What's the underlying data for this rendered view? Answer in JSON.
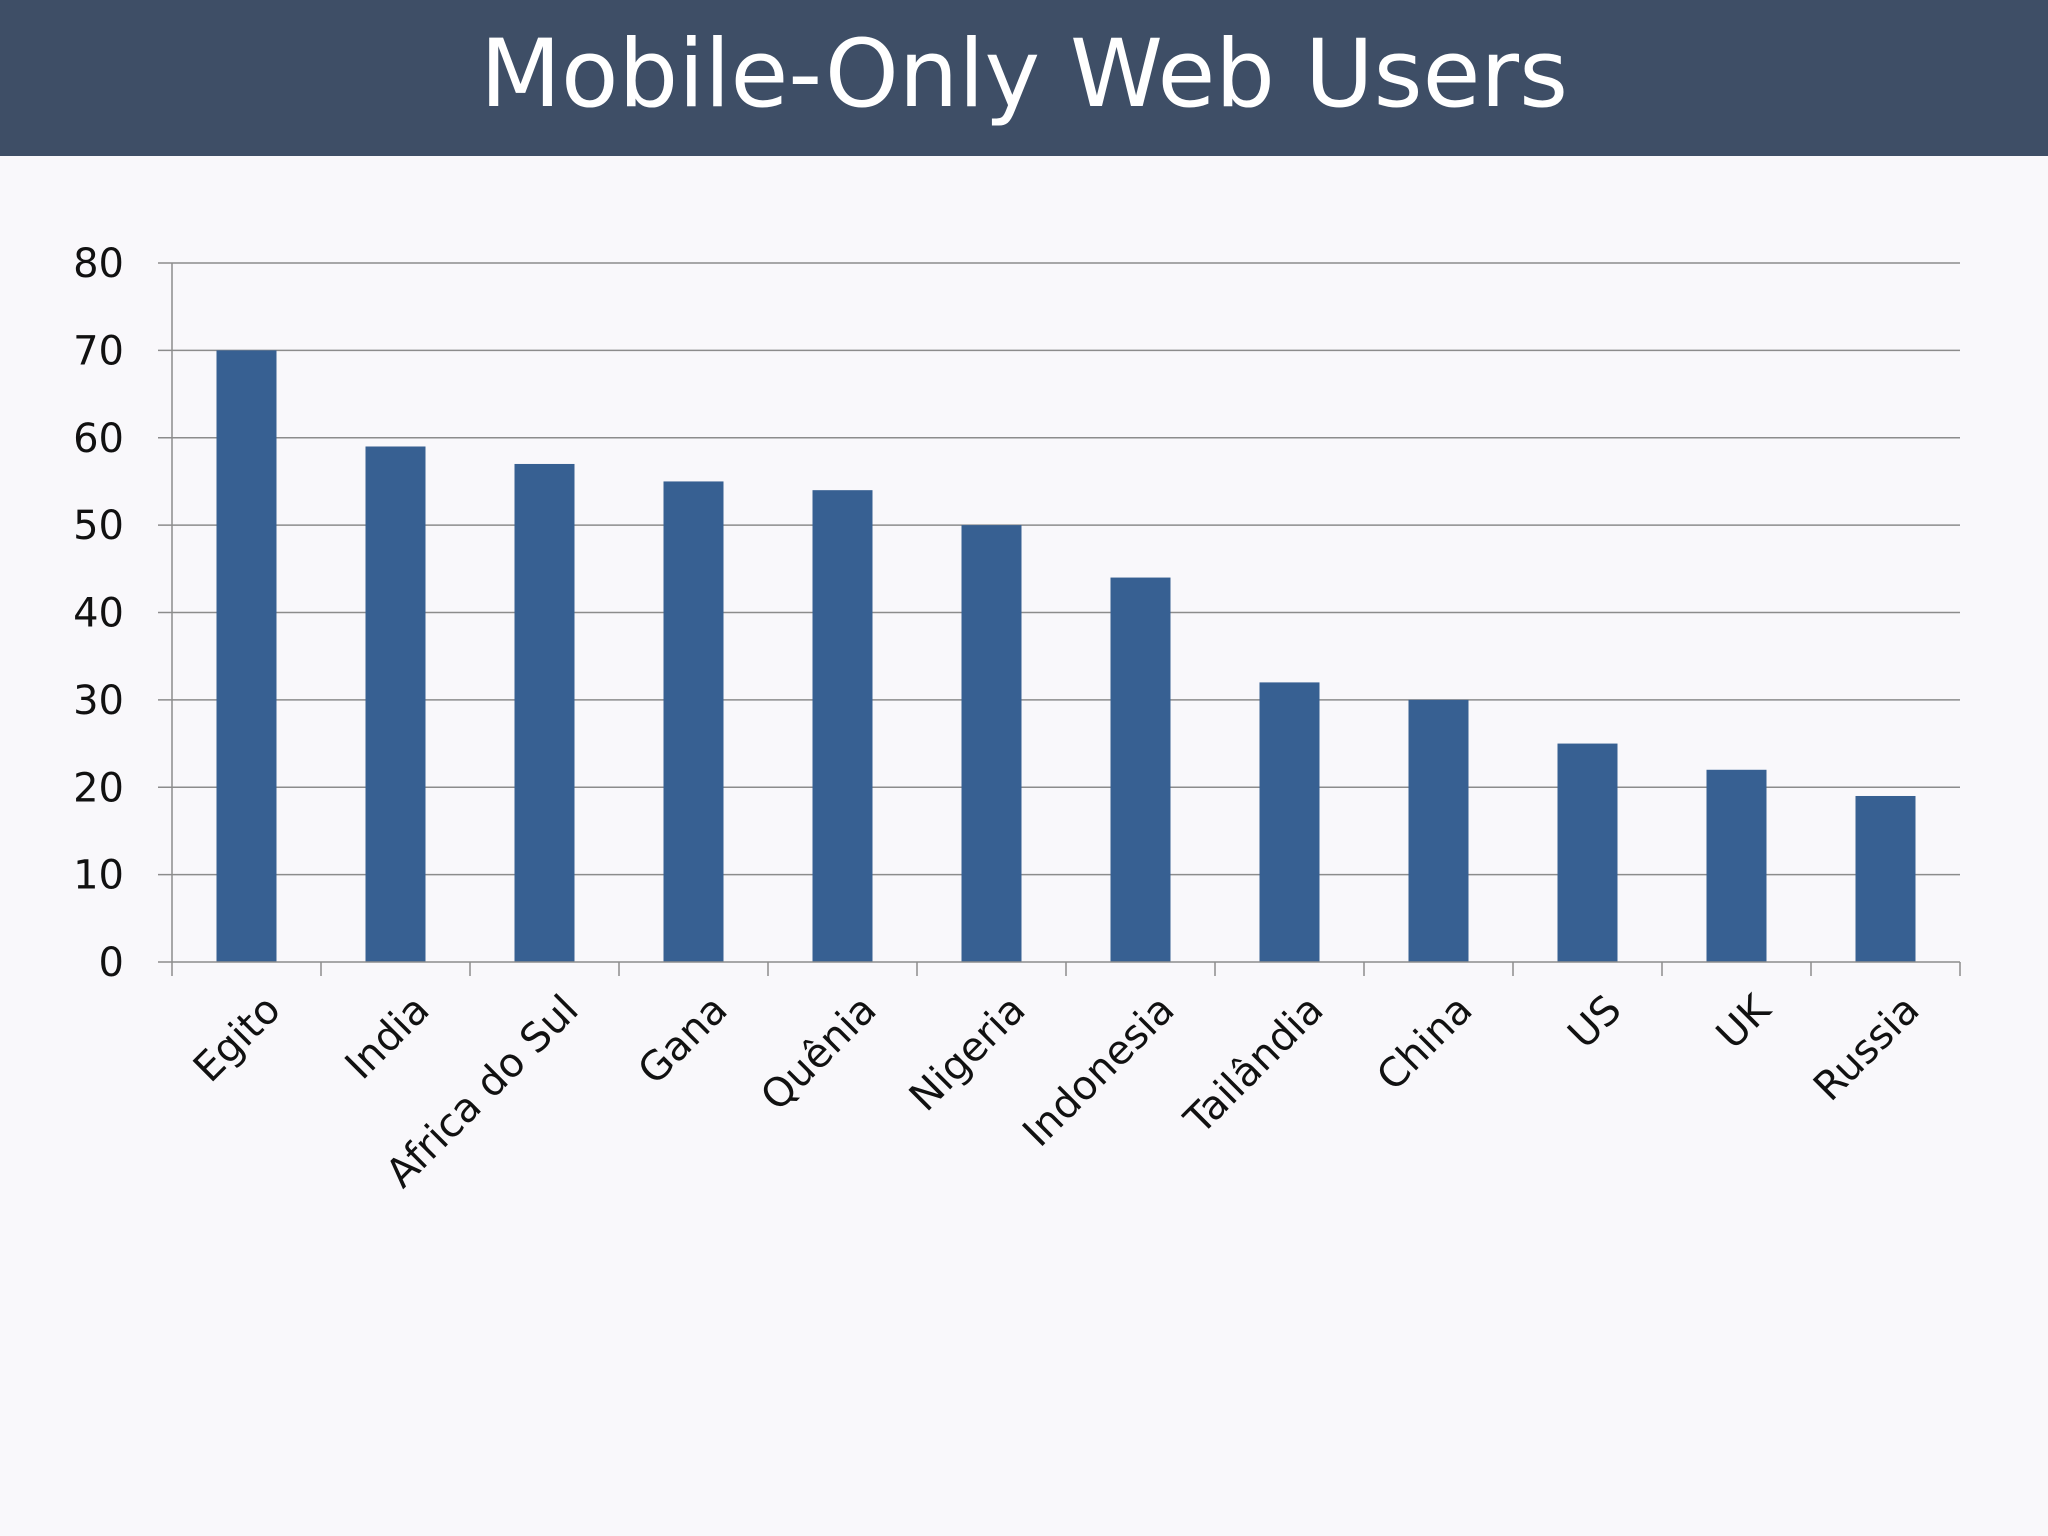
{
  "header": {
    "title": "Mobile-Only Web Users"
  },
  "chart_data": {
    "type": "bar",
    "title": "",
    "xlabel": "",
    "ylabel": "",
    "categories": [
      "Egito",
      "India",
      "Africa do Sul",
      "Gana",
      "Quênia",
      "Nigeria",
      "Indonesia",
      "Tailândia",
      "China",
      "US",
      "UK",
      "Russia"
    ],
    "values": [
      70,
      59,
      57,
      55,
      54,
      50,
      44,
      32,
      30,
      25,
      22,
      19
    ],
    "ylim": [
      0,
      80
    ],
    "yticks": [
      0,
      10,
      20,
      30,
      40,
      50,
      60,
      70,
      80
    ],
    "grid": true,
    "legend": "none",
    "bar_color": "#376092"
  }
}
